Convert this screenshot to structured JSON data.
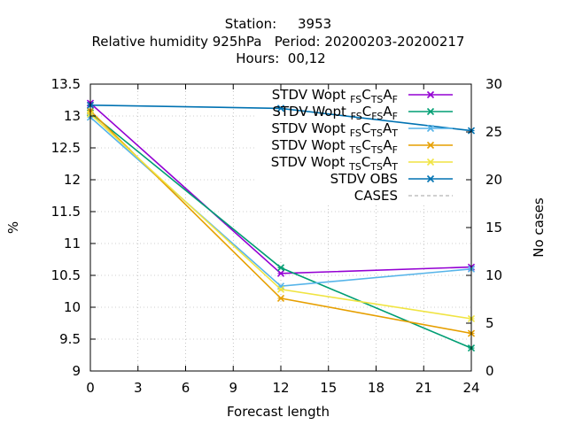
{
  "chart_data": {
    "type": "line",
    "title_lines": [
      "Station:     3953",
      "Relative humidity 925hPa   Period: 20200203-20200217",
      "Hours:  00,12"
    ],
    "xlabel": "Forecast length",
    "ylabel": "%",
    "y2label": "No cases",
    "x_ticks": [
      0,
      3,
      6,
      9,
      12,
      15,
      18,
      21,
      24
    ],
    "y_ticks": [
      "9",
      "9.5",
      "10",
      "10.5",
      "11",
      "11.5",
      "12",
      "12.5",
      "13",
      "13.5"
    ],
    "y2_ticks": [
      0,
      5,
      10,
      15,
      20,
      25,
      30
    ],
    "xlim": [
      0,
      24
    ],
    "ylim": [
      9,
      13.5
    ],
    "y2lim": [
      0,
      30
    ],
    "grid": true,
    "legend_position": "top-right",
    "series": [
      {
        "name": "STDV Wopt",
        "sub1": "FS",
        "mid": "C",
        "sub2": "TS",
        "a": "A",
        "sub3": "F",
        "color": "#9400d3",
        "marker": "x",
        "x": [
          0,
          12,
          24
        ],
        "values": [
          13.2,
          10.53,
          10.63
        ]
      },
      {
        "name": "STDV Wopt",
        "sub1": "FS",
        "mid": "C",
        "sub2": "FS",
        "a": "A",
        "sub3": "F",
        "color": "#009e73",
        "marker": "x",
        "x": [
          0,
          12,
          24
        ],
        "values": [
          13.05,
          10.62,
          9.36
        ]
      },
      {
        "name": "STDV Wopt",
        "sub1": "FS",
        "mid": "C",
        "sub2": "TS",
        "a": "A",
        "sub3": "T",
        "color": "#56b4e9",
        "marker": "x",
        "x": [
          0,
          12,
          24
        ],
        "values": [
          12.98,
          10.33,
          10.6
        ]
      },
      {
        "name": "STDV Wopt",
        "sub1": "TS",
        "mid": "C",
        "sub2": "TS",
        "a": "A",
        "sub3": "F",
        "color": "#e69f00",
        "marker": "x",
        "x": [
          0,
          12,
          24
        ],
        "values": [
          13.08,
          10.14,
          9.59
        ]
      },
      {
        "name": "STDV Wopt",
        "sub1": "TS",
        "mid": "C",
        "sub2": "TS",
        "a": "A",
        "sub3": "T",
        "color": "#f0e442",
        "marker": "x",
        "x": [
          0,
          12,
          24
        ],
        "values": [
          13.03,
          10.28,
          9.82
        ]
      },
      {
        "name": "STDV OBS",
        "color": "#0072b2",
        "marker": "x",
        "x": [
          0,
          12,
          24
        ],
        "values": [
          13.17,
          13.12,
          12.77
        ]
      },
      {
        "name": "CASES",
        "color": "#a0a0a0",
        "dashed": true,
        "axis": "y2",
        "x": [
          0,
          24
        ],
        "values": [
          30,
          30
        ]
      }
    ]
  }
}
